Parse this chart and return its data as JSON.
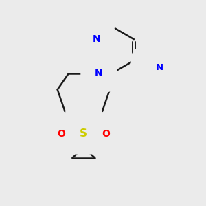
{
  "background_color": "#ebebeb",
  "atom_colors": {
    "N": "#0000ff",
    "O": "#ff0000",
    "S": "#cccc00",
    "C": "#1a1a1a",
    "CN_dark": "#2f4f4f"
  },
  "figsize": [
    3.0,
    3.0
  ],
  "dpi": 100
}
